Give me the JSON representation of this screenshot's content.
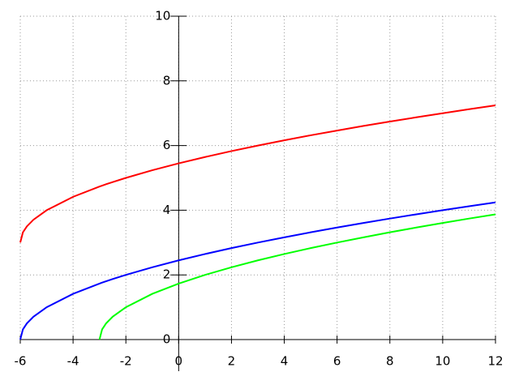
{
  "chart_data": {
    "type": "line",
    "x": [
      -6,
      -5.9,
      -5.75,
      -5.5,
      -5,
      -4,
      -3,
      -2.9,
      -2.75,
      -2.5,
      -2,
      -1,
      0,
      1,
      2,
      3,
      4,
      5,
      6,
      7,
      8,
      9,
      10,
      11,
      12
    ],
    "series": [
      {
        "color": "#ff0000",
        "values": [
          3,
          3.316,
          3.5,
          3.707,
          4,
          4.414,
          4.732,
          4.761,
          4.803,
          4.871,
          5,
          5.236,
          5.449,
          5.646,
          5.828,
          6,
          6.162,
          6.317,
          6.464,
          6.606,
          6.742,
          6.873,
          7,
          7.123,
          7.243
        ]
      },
      {
        "color": "#0000ff",
        "values": [
          0,
          0.316,
          0.5,
          0.707,
          1,
          1.414,
          1.732,
          1.761,
          1.803,
          1.871,
          2,
          2.236,
          2.449,
          2.646,
          2.828,
          3,
          3.162,
          3.317,
          3.464,
          3.606,
          3.742,
          3.873,
          4,
          4.123,
          4.243
        ]
      },
      {
        "color": "#00ff00",
        "values": [
          null,
          null,
          null,
          null,
          null,
          null,
          0,
          0.316,
          0.5,
          0.707,
          1,
          1.414,
          1.732,
          2,
          2.236,
          2.449,
          2.646,
          2.828,
          3,
          3.162,
          3.317,
          3.464,
          3.606,
          3.742,
          3.873
        ]
      }
    ],
    "xlim": [
      -6,
      12
    ],
    "xticks": [
      -6,
      -4,
      -2,
      0,
      2,
      4,
      6,
      8,
      10,
      12
    ],
    "ylim": [
      0,
      10
    ],
    "yticks": [
      0,
      2,
      4,
      6,
      8,
      10
    ],
    "grid": true
  }
}
